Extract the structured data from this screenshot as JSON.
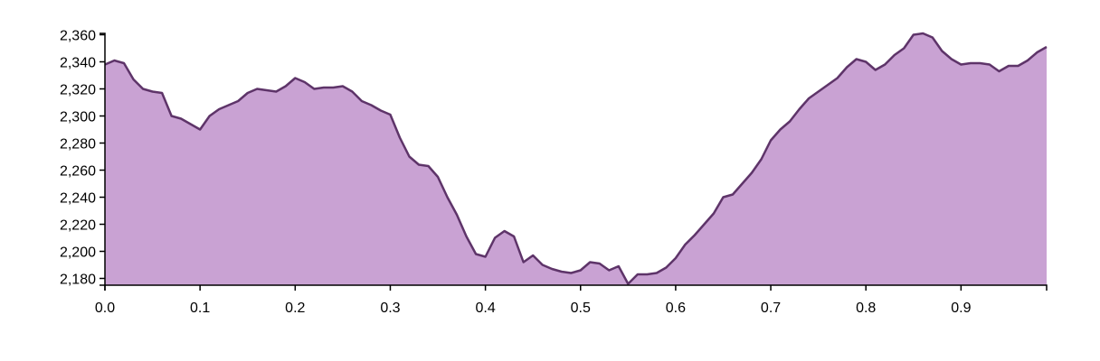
{
  "chart_data": {
    "type": "area",
    "x": [
      0,
      0.01,
      0.02,
      0.03,
      0.04,
      0.05,
      0.06,
      0.07,
      0.08,
      0.09,
      0.1,
      0.11,
      0.12,
      0.13,
      0.14,
      0.15,
      0.16,
      0.17,
      0.18,
      0.19,
      0.2,
      0.21,
      0.22,
      0.23,
      0.24,
      0.25,
      0.26,
      0.27,
      0.28,
      0.29,
      0.3,
      0.31,
      0.32,
      0.33,
      0.34,
      0.35,
      0.36,
      0.37,
      0.38,
      0.39,
      0.4,
      0.41,
      0.42,
      0.43,
      0.44,
      0.45,
      0.46,
      0.47,
      0.48,
      0.49,
      0.5,
      0.51,
      0.52,
      0.53,
      0.54,
      0.55,
      0.56,
      0.57,
      0.58,
      0.59,
      0.6,
      0.61,
      0.62,
      0.63,
      0.64,
      0.65,
      0.66,
      0.67,
      0.68,
      0.69,
      0.7,
      0.71,
      0.72,
      0.73,
      0.74,
      0.75,
      0.76,
      0.77,
      0.78,
      0.79,
      0.8,
      0.81,
      0.82,
      0.83,
      0.84,
      0.85,
      0.86,
      0.87,
      0.88,
      0.89,
      0.9,
      0.91,
      0.92,
      0.93,
      0.94,
      0.95,
      0.96,
      0.97,
      0.98,
      0.99
    ],
    "values": [
      2338,
      2341,
      2339,
      2327,
      2320,
      2318,
      2317,
      2300,
      2298,
      2294,
      2290,
      2300,
      2305,
      2308,
      2311,
      2317,
      2320,
      2319,
      2318,
      2322,
      2328,
      2325,
      2320,
      2321,
      2321,
      2322,
      2318,
      2311,
      2308,
      2304,
      2301,
      2284,
      2270,
      2264,
      2263,
      2255,
      2240,
      2227,
      2211,
      2198,
      2196,
      2210,
      2215,
      2211,
      2192,
      2197,
      2190,
      2187,
      2185,
      2184,
      2186,
      2192,
      2191,
      2186,
      2189,
      2176,
      2183,
      2183,
      2184,
      2188,
      2195,
      2205,
      2212,
      2220,
      2228,
      2240,
      2242,
      2250,
      2258,
      2268,
      2282,
      2290,
      2296,
      2305,
      2313,
      2318,
      2323,
      2328,
      2336,
      2342,
      2340,
      2334,
      2338,
      2345,
      2350,
      2360,
      2361,
      2358,
      2348,
      2342,
      2338,
      2339,
      2339,
      2338,
      2333,
      2337,
      2337,
      2341,
      2347,
      2351
    ],
    "fill": "#c9a2d3",
    "color": "#5e3469",
    "xlim": [
      0,
      0.99
    ],
    "ylim": [
      2175,
      2361
    ],
    "xticks": [
      {
        "value": 0,
        "label": "0.0"
      },
      0.1,
      0.2,
      0.3,
      0.4,
      0.5,
      0.6,
      0.7,
      0.8,
      0.9
    ],
    "yticks": [
      {
        "value": 2180,
        "label": "2,180"
      },
      {
        "value": 2200,
        "label": "2,200"
      },
      {
        "value": 2220,
        "label": "2,220"
      },
      {
        "value": 2240,
        "label": "2,240"
      },
      {
        "value": 2260,
        "label": "2,260"
      },
      {
        "value": 2280,
        "label": "2,280"
      },
      {
        "value": 2300,
        "label": "2,300"
      },
      {
        "value": 2320,
        "label": "2,320"
      },
      {
        "value": 2340,
        "label": "2,340"
      },
      {
        "value": 2360,
        "label": "2,360"
      }
    ]
  }
}
